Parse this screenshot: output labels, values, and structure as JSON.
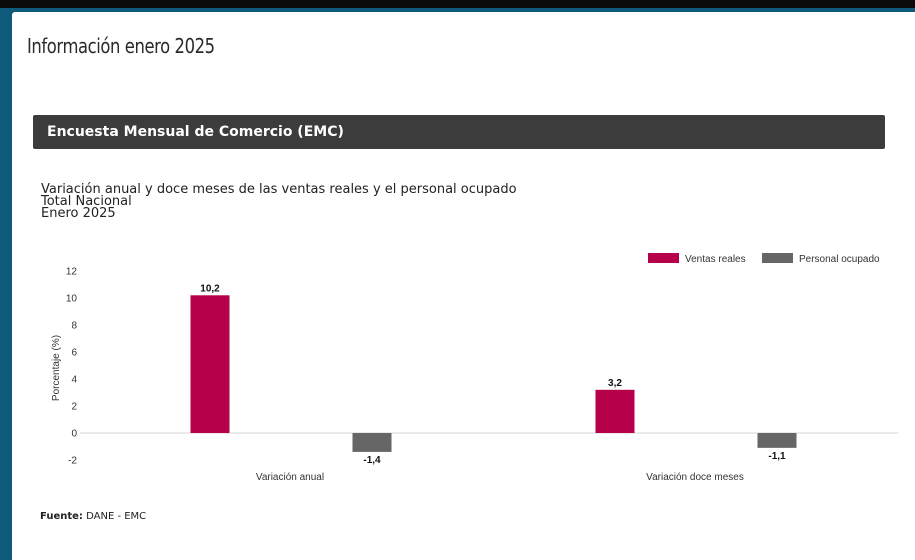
{
  "page": {
    "title": "Información enero 2025",
    "section_header": "Encuesta Mensual de Comercio (EMC)",
    "source_label": "Fuente:",
    "source_value": " DANE - EMC"
  },
  "chart_data": {
    "type": "bar",
    "title": "Variación anual y doce meses de las ventas reales y el personal ocupado",
    "subtitle_lines": [
      "Total Nacional",
      "Enero 2025"
    ],
    "ylabel": "Porcentaje (%)",
    "xlabel": "",
    "categories": [
      "Variación anual",
      "Variación doce meses"
    ],
    "series": [
      {
        "name": "Ventas reales",
        "color": "#b7004a",
        "values": [
          10.2,
          3.2
        ],
        "labels": [
          "10,2",
          "3,2"
        ]
      },
      {
        "name": "Personal ocupado",
        "color": "#666666",
        "values": [
          -1.4,
          -1.1
        ],
        "labels": [
          "-1,4",
          "-1,1"
        ]
      }
    ],
    "ylim": [
      -2,
      12
    ],
    "yticks": [
      12,
      10,
      8,
      6,
      4,
      2,
      0,
      -2
    ],
    "grid": false,
    "legend_position": "top-right"
  }
}
